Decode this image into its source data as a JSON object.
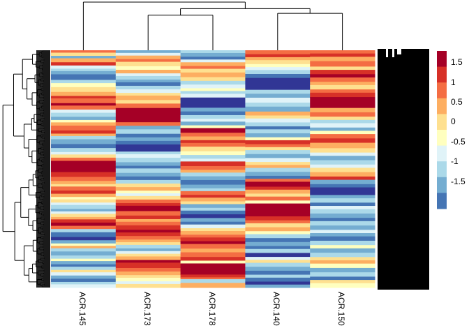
{
  "chart_data": {
    "type": "heatmap",
    "title": "",
    "xlabel": "",
    "ylabel": "",
    "columns": [
      "ACR.145",
      "ACR.173",
      "ACR.178",
      "ACR.140",
      "ACR.150"
    ],
    "row_labels_visible": "overplotted (illegible); first begins 'FUN_...'",
    "column_dendrogram": {
      "merges": [
        {
          "left": "ACR.173",
          "right": "ACR.178",
          "height": 0.72
        },
        {
          "left": "ACR.140",
          "right": "ACR.150",
          "height": 0.76
        },
        {
          "left": "ACR.173+ACR.178",
          "right": "ACR.140+ACR.150",
          "height": 0.86
        },
        {
          "left": "ACR.145",
          "right": "rest",
          "height": 1.0
        }
      ]
    },
    "row_dendrogram": "present (dense, many leaves)",
    "color_scale": {
      "breaks": [
        -2,
        -1.5,
        -1.25,
        -0.75,
        -0.25,
        0.25,
        0.5,
        0.75,
        1.25,
        1.5,
        2
      ],
      "colors": [
        "#313695",
        "#4575b4",
        "#74add1",
        "#abd9e9",
        "#e0f3f8",
        "#ffffbf",
        "#fee090",
        "#fdae61",
        "#f46d43",
        "#d73027",
        "#a50026"
      ],
      "legend_ticks": [
        "1.5",
        "1",
        "0.5",
        "0",
        "-0.5",
        "-1",
        "-1.5"
      ],
      "legend_position": "right"
    },
    "bands": [
      [
        [
          8,
          3
        ],
        [
          6,
          4
        ],
        [
          2,
          3
        ],
        [
          7,
          5
        ],
        [
          9,
          4
        ],
        [
          4,
          4
        ],
        [
          3,
          3
        ],
        [
          2,
          4
        ],
        [
          1,
          7
        ],
        [
          3,
          4
        ],
        [
          5,
          5
        ],
        [
          6,
          6
        ],
        [
          7,
          5
        ],
        [
          9,
          3
        ],
        [
          8,
          6
        ],
        [
          10,
          3
        ],
        [
          8,
          5
        ],
        [
          4,
          4
        ],
        [
          3,
          5
        ],
        [
          2,
          4
        ],
        [
          5,
          3
        ],
        [
          7,
          4
        ],
        [
          8,
          6
        ],
        [
          9,
          4
        ],
        [
          7,
          3
        ],
        [
          3,
          4
        ],
        [
          2,
          6
        ],
        [
          1,
          5
        ],
        [
          3,
          5
        ],
        [
          4,
          3
        ],
        [
          6,
          4
        ],
        [
          8,
          4
        ],
        [
          10,
          14
        ],
        [
          9,
          6
        ],
        [
          8,
          5
        ],
        [
          7,
          4
        ],
        [
          6,
          3
        ],
        [
          8,
          5
        ],
        [
          9,
          4
        ],
        [
          7,
          4
        ],
        [
          5,
          3
        ],
        [
          6,
          4
        ],
        [
          4,
          3
        ],
        [
          3,
          5
        ],
        [
          2,
          3
        ],
        [
          4,
          3
        ],
        [
          6,
          4
        ],
        [
          7,
          3
        ],
        [
          9,
          4
        ],
        [
          10,
          4
        ],
        [
          8,
          4
        ],
        [
          3,
          4
        ],
        [
          1,
          6
        ],
        [
          0,
          4
        ],
        [
          2,
          4
        ],
        [
          5,
          3
        ],
        [
          7,
          3
        ],
        [
          3,
          4
        ],
        [
          2,
          5
        ],
        [
          3,
          4
        ],
        [
          5,
          3
        ],
        [
          2,
          4
        ],
        [
          1,
          3
        ],
        [
          3,
          4
        ],
        [
          6,
          3
        ],
        [
          4,
          4
        ],
        [
          2,
          4
        ],
        [
          1,
          4
        ],
        [
          3,
          3
        ],
        [
          4,
          4
        ]
      ],
      [
        [
          2,
          3
        ],
        [
          4,
          3
        ],
        [
          7,
          4
        ],
        [
          8,
          3
        ],
        [
          6,
          5
        ],
        [
          5,
          4
        ],
        [
          7,
          4
        ],
        [
          4,
          3
        ],
        [
          3,
          4
        ],
        [
          2,
          3
        ],
        [
          1,
          4
        ],
        [
          3,
          4
        ],
        [
          4,
          4
        ],
        [
          6,
          3
        ],
        [
          7,
          5
        ],
        [
          6,
          4
        ],
        [
          8,
          5
        ],
        [
          10,
          4
        ],
        [
          10,
          12
        ],
        [
          8,
          4
        ],
        [
          2,
          4
        ],
        [
          3,
          5
        ],
        [
          1,
          4
        ],
        [
          2,
          4
        ],
        [
          1,
          4
        ],
        [
          0,
          8
        ],
        [
          3,
          3
        ],
        [
          4,
          4
        ],
        [
          3,
          5
        ],
        [
          2,
          4
        ],
        [
          1,
          3
        ],
        [
          3,
          5
        ],
        [
          2,
          4
        ],
        [
          1,
          4
        ],
        [
          3,
          4
        ],
        [
          6,
          4
        ],
        [
          7,
          4
        ],
        [
          5,
          3
        ],
        [
          4,
          3
        ],
        [
          6,
          4
        ],
        [
          8,
          4
        ],
        [
          9,
          3
        ],
        [
          10,
          6
        ],
        [
          8,
          5
        ],
        [
          9,
          4
        ],
        [
          7,
          3
        ],
        [
          8,
          4
        ],
        [
          9,
          5
        ],
        [
          10,
          3
        ],
        [
          9,
          4
        ],
        [
          8,
          4
        ],
        [
          7,
          3
        ],
        [
          6,
          3
        ],
        [
          3,
          4
        ],
        [
          2,
          3
        ],
        [
          4,
          3
        ],
        [
          6,
          3
        ],
        [
          7,
          4
        ],
        [
          10,
          3
        ],
        [
          9,
          6
        ],
        [
          8,
          4
        ],
        [
          7,
          4
        ],
        [
          6,
          3
        ],
        [
          5,
          4
        ],
        [
          4,
          3
        ],
        [
          6,
          4
        ]
      ],
      [
        [
          3,
          3
        ],
        [
          2,
          4
        ],
        [
          1,
          3
        ],
        [
          4,
          3
        ],
        [
          7,
          4
        ],
        [
          8,
          3
        ],
        [
          6,
          4
        ],
        [
          7,
          5
        ],
        [
          6,
          4
        ],
        [
          3,
          4
        ],
        [
          4,
          4
        ],
        [
          5,
          3
        ],
        [
          3,
          3
        ],
        [
          4,
          4
        ],
        [
          0,
          11
        ],
        [
          2,
          4
        ],
        [
          1,
          4
        ],
        [
          3,
          4
        ],
        [
          4,
          3
        ],
        [
          2,
          4
        ],
        [
          5,
          3
        ],
        [
          10,
          5
        ],
        [
          8,
          4
        ],
        [
          7,
          4
        ],
        [
          9,
          3
        ],
        [
          8,
          4
        ],
        [
          6,
          5
        ],
        [
          5,
          4
        ],
        [
          3,
          4
        ],
        [
          4,
          3
        ],
        [
          9,
          5
        ],
        [
          8,
          4
        ],
        [
          7,
          3
        ],
        [
          3,
          4
        ],
        [
          2,
          4
        ],
        [
          1,
          5
        ],
        [
          2,
          4
        ],
        [
          3,
          3
        ],
        [
          8,
          4
        ],
        [
          9,
          3
        ],
        [
          7,
          4
        ],
        [
          6,
          3
        ],
        [
          2,
          4
        ],
        [
          3,
          3
        ],
        [
          1,
          4
        ],
        [
          0,
          4
        ],
        [
          2,
          4
        ],
        [
          1,
          3
        ],
        [
          4,
          4
        ],
        [
          6,
          3
        ],
        [
          7,
          4
        ],
        [
          8,
          3
        ],
        [
          9,
          4
        ],
        [
          10,
          3
        ],
        [
          8,
          5
        ],
        [
          7,
          4
        ],
        [
          8,
          5
        ],
        [
          9,
          4
        ],
        [
          5,
          3
        ],
        [
          10,
          12
        ],
        [
          9,
          3
        ],
        [
          8,
          2
        ],
        [
          3,
          4
        ],
        [
          7,
          5
        ]
      ],
      [
        [
          8,
          4
        ],
        [
          9,
          3
        ],
        [
          7,
          3
        ],
        [
          6,
          4
        ],
        [
          5,
          3
        ],
        [
          4,
          3
        ],
        [
          3,
          4
        ],
        [
          1,
          4
        ],
        [
          0,
          12
        ],
        [
          3,
          4
        ],
        [
          2,
          4
        ],
        [
          4,
          5
        ],
        [
          3,
          4
        ],
        [
          2,
          5
        ],
        [
          7,
          4
        ],
        [
          6,
          3
        ],
        [
          4,
          4
        ],
        [
          3,
          4
        ],
        [
          1,
          3
        ],
        [
          3,
          4
        ],
        [
          2,
          4
        ],
        [
          5,
          3
        ],
        [
          9,
          4
        ],
        [
          8,
          3
        ],
        [
          6,
          3
        ],
        [
          3,
          4
        ],
        [
          2,
          4
        ],
        [
          4,
          4
        ],
        [
          6,
          3
        ],
        [
          7,
          3
        ],
        [
          3,
          4
        ],
        [
          2,
          4
        ],
        [
          1,
          3
        ],
        [
          8,
          3
        ],
        [
          10,
          5
        ],
        [
          9,
          3
        ],
        [
          7,
          4
        ],
        [
          6,
          3
        ],
        [
          8,
          4
        ],
        [
          5,
          3
        ],
        [
          10,
          13
        ],
        [
          9,
          4
        ],
        [
          8,
          3
        ],
        [
          6,
          4
        ],
        [
          7,
          4
        ],
        [
          5,
          3
        ],
        [
          3,
          4
        ],
        [
          1,
          4
        ],
        [
          2,
          4
        ],
        [
          1,
          3
        ],
        [
          3,
          4
        ],
        [
          0,
          4
        ],
        [
          4,
          3
        ],
        [
          6,
          3
        ],
        [
          3,
          4
        ],
        [
          2,
          4
        ],
        [
          1,
          4
        ],
        [
          3,
          3
        ],
        [
          1,
          4
        ],
        [
          0,
          3
        ],
        [
          2,
          3
        ]
      ],
      [
        [
          8,
          3
        ],
        [
          9,
          3
        ],
        [
          7,
          4
        ],
        [
          8,
          5
        ],
        [
          6,
          3
        ],
        [
          9,
          4
        ],
        [
          10,
          3
        ],
        [
          8,
          4
        ],
        [
          7,
          3
        ],
        [
          6,
          4
        ],
        [
          8,
          3
        ],
        [
          9,
          4
        ],
        [
          10,
          10
        ],
        [
          7,
          4
        ],
        [
          8,
          4
        ],
        [
          6,
          3
        ],
        [
          3,
          3
        ],
        [
          4,
          4
        ],
        [
          2,
          3
        ],
        [
          5,
          3
        ],
        [
          8,
          4
        ],
        [
          9,
          4
        ],
        [
          7,
          5
        ],
        [
          6,
          4
        ],
        [
          4,
          3
        ],
        [
          2,
          4
        ],
        [
          3,
          4
        ],
        [
          4,
          3
        ],
        [
          6,
          4
        ],
        [
          7,
          4
        ],
        [
          9,
          3
        ],
        [
          2,
          4
        ],
        [
          1,
          3
        ],
        [
          0,
          7
        ],
        [
          2,
          3
        ],
        [
          3,
          4
        ],
        [
          1,
          3
        ],
        [
          4,
          3
        ],
        [
          3,
          4
        ],
        [
          2,
          4
        ],
        [
          1,
          3
        ],
        [
          3,
          4
        ],
        [
          2,
          4
        ],
        [
          4,
          3
        ],
        [
          2,
          3
        ],
        [
          1,
          4
        ],
        [
          3,
          4
        ],
        [
          5,
          3
        ],
        [
          2,
          4
        ],
        [
          3,
          4
        ],
        [
          6,
          3
        ],
        [
          7,
          3
        ],
        [
          5,
          4
        ],
        [
          2,
          4
        ],
        [
          3,
          4
        ],
        [
          1,
          3
        ],
        [
          6,
          3
        ],
        [
          5,
          4
        ]
      ]
    ]
  }
}
